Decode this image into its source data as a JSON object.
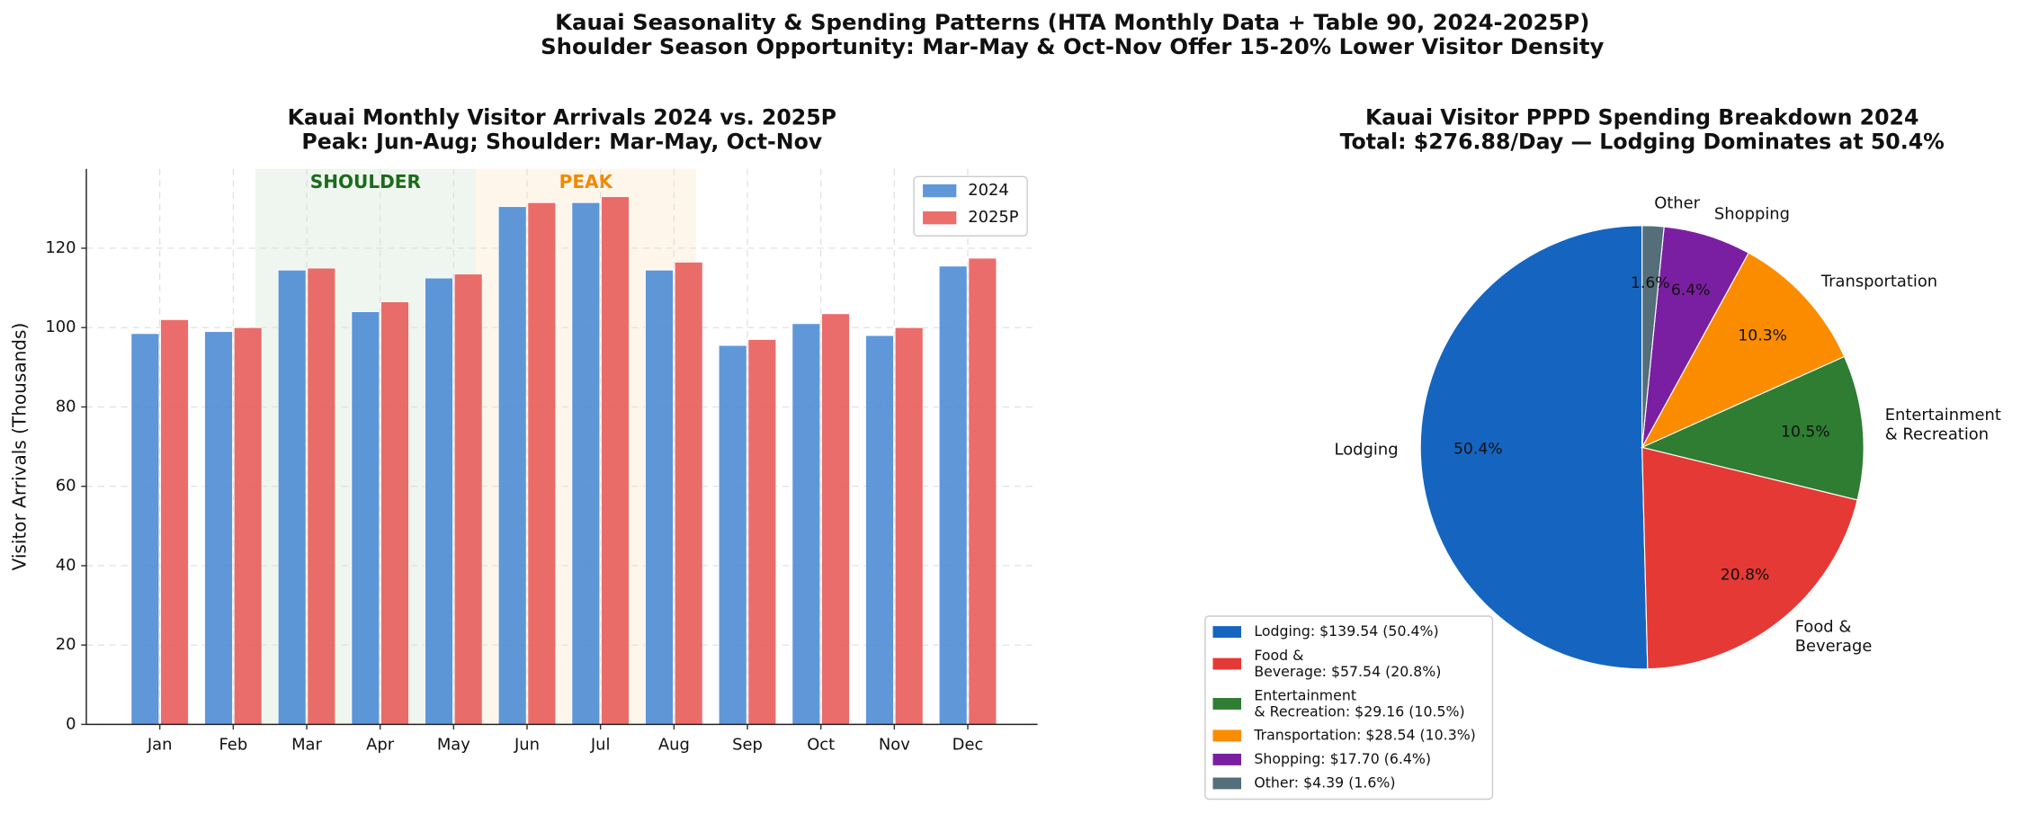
{
  "suptitle": [
    "Kauai Seasonality & Spending Patterns (HTA Monthly Data + Table 90, 2024-2025P)",
    "Shoulder Season Opportunity: Mar-May & Oct-Nov Offer 15-20% Lower Visitor Density"
  ],
  "chart_data": [
    {
      "type": "bar",
      "title": [
        "Kauai Monthly Visitor Arrivals 2024 vs. 2025P",
        "Peak: Jun-Aug; Shoulder: Mar-May, Oct-Nov"
      ],
      "y_label": "Visitor Arrivals (Thousands)",
      "categories": [
        "Jan",
        "Feb",
        "Mar",
        "Apr",
        "May",
        "Jun",
        "Jul",
        "Aug",
        "Sep",
        "Oct",
        "Nov",
        "Dec"
      ],
      "series": [
        {
          "name": "2024",
          "color": "#4a89d4",
          "values": [
            98.5,
            99,
            114.5,
            104,
            112.5,
            130.5,
            131.5,
            114.5,
            95.5,
            101,
            98,
            115.5
          ]
        },
        {
          "name": "2025P",
          "color": "#e85a57",
          "values": [
            102,
            100,
            115,
            106.5,
            113.5,
            131.5,
            133,
            116.5,
            97,
            103.5,
            100,
            117.5
          ]
        }
      ],
      "spans": [
        {
          "label": "SHOULDER",
          "start": 1.3,
          "end": 4.3,
          "color": "#2e7d32",
          "text_color": "#1b6b1b"
        },
        {
          "label": "PEAK",
          "start": 4.3,
          "end": 7.3,
          "color": "#fb8c00",
          "text_color": "#f08a00"
        }
      ],
      "ylim": [
        0,
        140
      ],
      "yticks": [
        0,
        20,
        40,
        60,
        80,
        100,
        120
      ],
      "grid": true,
      "legend": "upper right"
    },
    {
      "type": "pie",
      "title": [
        "Kauai Visitor PPPD Spending Breakdown 2024",
        "Total: $276.88/Day — Lodging Dominates at 50.4%"
      ],
      "categories": [
        "Lodging",
        "Food &\nBeverage",
        "Entertainment\n& Recreation",
        "Transportation",
        "Shopping",
        "Other"
      ],
      "values": [
        139.54,
        57.54,
        29.16,
        28.54,
        17.7,
        4.39
      ],
      "value_labels": [
        "50.4%",
        "20.8%",
        "10.5%",
        "10.3%",
        "6.4%",
        "1.6%"
      ],
      "colors": [
        "#1565c0",
        "#e53935",
        "#2e7d32",
        "#fb8c00",
        "#7b1fa2",
        "#546e7a"
      ],
      "legend_labels": [
        "Lodging: $139.54 (50.4%)",
        "Food &\nBeverage: $57.54 (20.8%)",
        "Entertainment\n& Recreation: $29.16 (10.5%)",
        "Transportation: $28.54 (10.3%)",
        "Shopping: $17.70 (6.4%)",
        "Other: $4.39 (1.6%)"
      ],
      "start_angle": 90,
      "counterclockwise": true,
      "legend": "lower left"
    }
  ]
}
